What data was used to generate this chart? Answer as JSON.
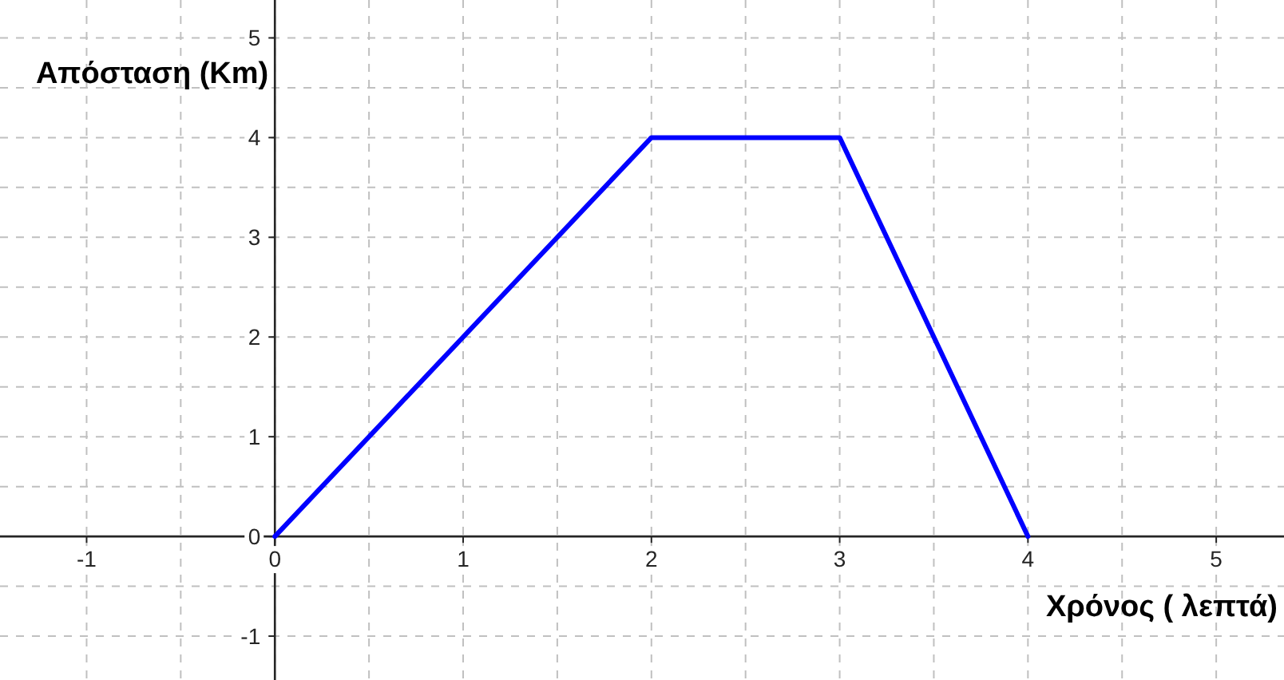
{
  "chart_data": {
    "type": "line",
    "xlabel": "Χρόνος ( λεπτά)",
    "ylabel": "Απόσταση (Km)",
    "x": [
      0,
      2,
      3,
      4
    ],
    "series": [
      {
        "color": "#0000ff",
        "values": [
          0,
          4,
          4,
          0
        ]
      }
    ],
    "xlim": [
      -1.46,
      5.36
    ],
    "ylim": [
      -1.44,
      5.38
    ],
    "xticks": [
      -1,
      {
        "value": -0.5,
        "label": null
      },
      0,
      {
        "value": 0.5,
        "label": null
      },
      1,
      {
        "value": 1.5,
        "label": null
      },
      2,
      {
        "value": 2.5,
        "label": null
      },
      3,
      {
        "value": 3.5,
        "label": null
      },
      4,
      {
        "value": 4.5,
        "label": null
      },
      5
    ],
    "yticks": [
      -1,
      {
        "value": -0.5,
        "label": null
      },
      0,
      {
        "value": 0.5,
        "label": null
      },
      1,
      {
        "value": 1.5,
        "label": null
      },
      2,
      {
        "value": 2.5,
        "label": null
      },
      3,
      {
        "value": 3.5,
        "label": null
      },
      4,
      {
        "value": 4.5,
        "label": null
      },
      5
    ],
    "grid": true,
    "marker": "none",
    "line_style": "solid"
  }
}
